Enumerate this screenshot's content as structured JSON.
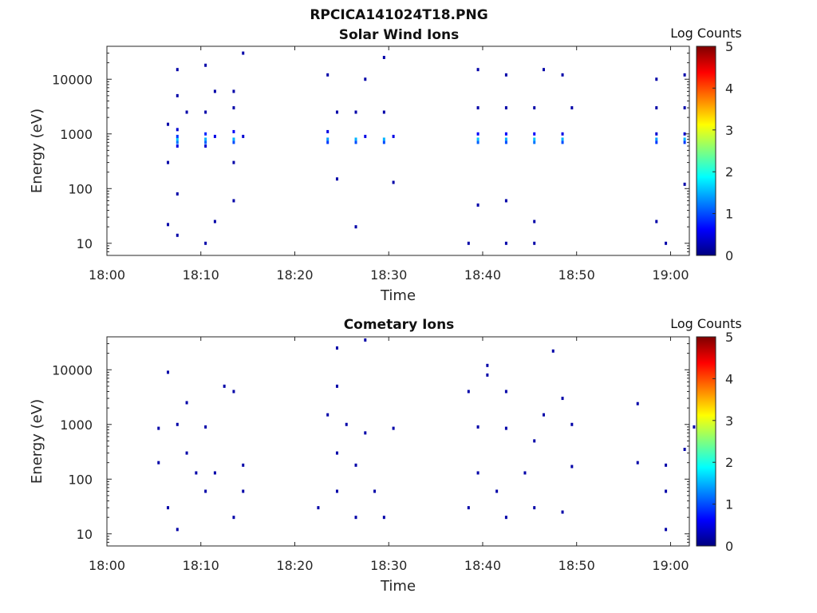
{
  "figure_title": "RPCICA141024T18.PNG",
  "colorbar": {
    "label": "Log Counts",
    "range": [
      0,
      5
    ],
    "ticks": [
      "0",
      "1",
      "2",
      "3",
      "4",
      "5"
    ],
    "colormap": [
      "#00007f",
      "#0000ff",
      "#007fff",
      "#00ffff",
      "#7fff7f",
      "#ffff00",
      "#ff7f00",
      "#ff0000",
      "#7f0000"
    ]
  },
  "chart_data": [
    {
      "type": "heatmap",
      "title": "Solar Wind Ions",
      "xlabel": "Time",
      "ylabel": "Energy (eV)",
      "y_scale": "log",
      "xlim": [
        "18:00",
        "19:02"
      ],
      "ylim": [
        6,
        40000
      ],
      "x_ticks": [
        "18:00",
        "18:10",
        "18:20",
        "18:30",
        "18:40",
        "18:50",
        "19:00"
      ],
      "y_ticks": [
        "10",
        "100",
        "1000",
        "10000"
      ],
      "grid": false,
      "cells": [
        [
          "18:07",
          800,
          1.6
        ],
        [
          "18:07",
          700,
          1.2
        ],
        [
          "18:07",
          900,
          0.9
        ],
        [
          "18:07",
          1200,
          0.4
        ],
        [
          "18:07",
          600,
          0.5
        ],
        [
          "18:06",
          1500,
          0.2
        ],
        [
          "18:06",
          300,
          0.2
        ],
        [
          "18:08",
          2500,
          0.2
        ],
        [
          "18:07",
          5000,
          0.2
        ],
        [
          "18:07",
          15000,
          0.2
        ],
        [
          "18:07",
          14,
          0.2
        ],
        [
          "18:06",
          22,
          0.2
        ],
        [
          "18:07",
          80,
          0.2
        ],
        [
          "18:10",
          800,
          1.5
        ],
        [
          "18:10",
          700,
          1.1
        ],
        [
          "18:10",
          1000,
          0.8
        ],
        [
          "18:10",
          600,
          0.4
        ],
        [
          "18:11",
          900,
          0.5
        ],
        [
          "18:10",
          2500,
          0.2
        ],
        [
          "18:11",
          6000,
          0.2
        ],
        [
          "18:10",
          18000,
          0.2
        ],
        [
          "18:10",
          10,
          0.2
        ],
        [
          "18:11",
          25,
          0.2
        ],
        [
          "18:13",
          800,
          1.5
        ],
        [
          "18:13",
          700,
          1.0
        ],
        [
          "18:13",
          1100,
          0.6
        ],
        [
          "18:14",
          900,
          0.4
        ],
        [
          "18:13",
          3000,
          0.2
        ],
        [
          "18:13",
          6000,
          0.2
        ],
        [
          "18:14",
          30000,
          0.2
        ],
        [
          "18:13",
          300,
          0.2
        ],
        [
          "18:13",
          60,
          0.2
        ],
        [
          "18:23",
          800,
          1.4
        ],
        [
          "18:23",
          700,
          0.9
        ],
        [
          "18:23",
          1100,
          0.5
        ],
        [
          "18:24",
          2500,
          0.2
        ],
        [
          "18:23",
          12000,
          0.2
        ],
        [
          "18:24",
          150,
          0.2
        ],
        [
          "18:26",
          800,
          1.5
        ],
        [
          "18:26",
          700,
          1.0
        ],
        [
          "18:27",
          900,
          0.5
        ],
        [
          "18:26",
          2500,
          0.2
        ],
        [
          "18:27",
          10000,
          0.2
        ],
        [
          "18:26",
          20,
          0.2
        ],
        [
          "18:29",
          800,
          1.5
        ],
        [
          "18:29",
          700,
          1.0
        ],
        [
          "18:30",
          900,
          0.5
        ],
        [
          "18:29",
          2500,
          0.2
        ],
        [
          "18:29",
          25000,
          0.2
        ],
        [
          "18:30",
          130,
          0.2
        ],
        [
          "18:39",
          800,
          1.6
        ],
        [
          "18:39",
          700,
          1.1
        ],
        [
          "18:39",
          1000,
          0.6
        ],
        [
          "18:39",
          3000,
          0.2
        ],
        [
          "18:39",
          15000,
          0.2
        ],
        [
          "18:39",
          50,
          0.2
        ],
        [
          "18:38",
          10,
          0.2
        ],
        [
          "18:42",
          800,
          1.5
        ],
        [
          "18:42",
          700,
          1.0
        ],
        [
          "18:42",
          1000,
          0.6
        ],
        [
          "18:42",
          3000,
          0.2
        ],
        [
          "18:42",
          12000,
          0.2
        ],
        [
          "18:42",
          10,
          0.2
        ],
        [
          "18:42",
          60,
          0.2
        ],
        [
          "18:45",
          800,
          1.6
        ],
        [
          "18:45",
          700,
          1.2
        ],
        [
          "18:45",
          1000,
          0.6
        ],
        [
          "18:45",
          3000,
          0.2
        ],
        [
          "18:46",
          15000,
          0.2
        ],
        [
          "18:45",
          10,
          0.2
        ],
        [
          "18:45",
          25,
          0.2
        ],
        [
          "18:48",
          800,
          1.5
        ],
        [
          "18:48",
          700,
          1.0
        ],
        [
          "18:48",
          1000,
          0.5
        ],
        [
          "18:49",
          3000,
          0.2
        ],
        [
          "18:48",
          12000,
          0.2
        ],
        [
          "18:58",
          800,
          1.4
        ],
        [
          "18:58",
          700,
          0.9
        ],
        [
          "18:58",
          1000,
          0.4
        ],
        [
          "18:58",
          3000,
          0.2
        ],
        [
          "18:58",
          10000,
          0.2
        ],
        [
          "18:58",
          25,
          0.2
        ],
        [
          "18:59",
          10,
          0.2
        ],
        [
          "19:01",
          800,
          1.5
        ],
        [
          "19:01",
          700,
          0.9
        ],
        [
          "19:01",
          1000,
          0.5
        ],
        [
          "19:01",
          3000,
          0.2
        ],
        [
          "19:01",
          12000,
          0.2
        ],
        [
          "19:01",
          120,
          0.2
        ]
      ]
    },
    {
      "type": "heatmap",
      "title": "Cometary Ions",
      "xlabel": "Time",
      "ylabel": "Energy (eV)",
      "y_scale": "log",
      "xlim": [
        "18:00",
        "19:02"
      ],
      "ylim": [
        6,
        40000
      ],
      "x_ticks": [
        "18:00",
        "18:10",
        "18:20",
        "18:30",
        "18:40",
        "18:50",
        "19:00"
      ],
      "y_ticks": [
        "10",
        "100",
        "1000",
        "10000"
      ],
      "grid": false,
      "cells": [
        [
          "18:05",
          850,
          0.2
        ],
        [
          "18:05",
          200,
          0.2
        ],
        [
          "18:06",
          9000,
          0.2
        ],
        [
          "18:06",
          30,
          0.2
        ],
        [
          "18:07",
          12,
          0.2
        ],
        [
          "18:07",
          1000,
          0.2
        ],
        [
          "18:08",
          2500,
          0.2
        ],
        [
          "18:08",
          300,
          0.2
        ],
        [
          "18:09",
          130,
          0.2
        ],
        [
          "18:10",
          900,
          0.2
        ],
        [
          "18:10",
          60,
          0.2
        ],
        [
          "18:11",
          130,
          0.2
        ],
        [
          "18:12",
          5000,
          0.2
        ],
        [
          "18:13",
          4000,
          0.2
        ],
        [
          "18:13",
          20,
          0.2
        ],
        [
          "18:14",
          180,
          0.2
        ],
        [
          "18:14",
          60,
          0.2
        ],
        [
          "18:22",
          30,
          0.2
        ],
        [
          "18:23",
          1500,
          0.2
        ],
        [
          "18:24",
          25000,
          0.2
        ],
        [
          "18:24",
          5000,
          0.2
        ],
        [
          "18:24",
          300,
          0.2
        ],
        [
          "18:24",
          60,
          0.2
        ],
        [
          "18:25",
          1000,
          0.2
        ],
        [
          "18:26",
          20,
          0.2
        ],
        [
          "18:26",
          180,
          0.2
        ],
        [
          "18:27",
          35000,
          0.2
        ],
        [
          "18:27",
          700,
          0.2
        ],
        [
          "18:28",
          60,
          0.2
        ],
        [
          "18:29",
          20,
          0.2
        ],
        [
          "18:30",
          850,
          0.2
        ],
        [
          "18:38",
          4000,
          0.2
        ],
        [
          "18:38",
          30,
          0.2
        ],
        [
          "18:39",
          900,
          0.2
        ],
        [
          "18:39",
          130,
          0.2
        ],
        [
          "18:40",
          8000,
          0.2
        ],
        [
          "18:40",
          12000,
          0.2
        ],
        [
          "18:41",
          60,
          0.2
        ],
        [
          "18:42",
          4000,
          0.2
        ],
        [
          "18:42",
          850,
          0.2
        ],
        [
          "18:42",
          20,
          0.2
        ],
        [
          "18:44",
          130,
          0.2
        ],
        [
          "18:45",
          500,
          0.2
        ],
        [
          "18:45",
          30,
          0.2
        ],
        [
          "18:46",
          1500,
          0.2
        ],
        [
          "18:47",
          22000,
          0.2
        ],
        [
          "18:48",
          3000,
          0.2
        ],
        [
          "18:48",
          25,
          0.2
        ],
        [
          "18:49",
          1000,
          0.2
        ],
        [
          "18:49",
          170,
          0.2
        ],
        [
          "18:56",
          2400,
          0.2
        ],
        [
          "18:56",
          200,
          0.2
        ],
        [
          "18:59",
          180,
          0.2
        ],
        [
          "18:59",
          60,
          0.2
        ],
        [
          "18:59",
          12,
          0.2
        ],
        [
          "19:01",
          350,
          0.2
        ],
        [
          "19:02",
          900,
          0.2
        ]
      ]
    }
  ]
}
